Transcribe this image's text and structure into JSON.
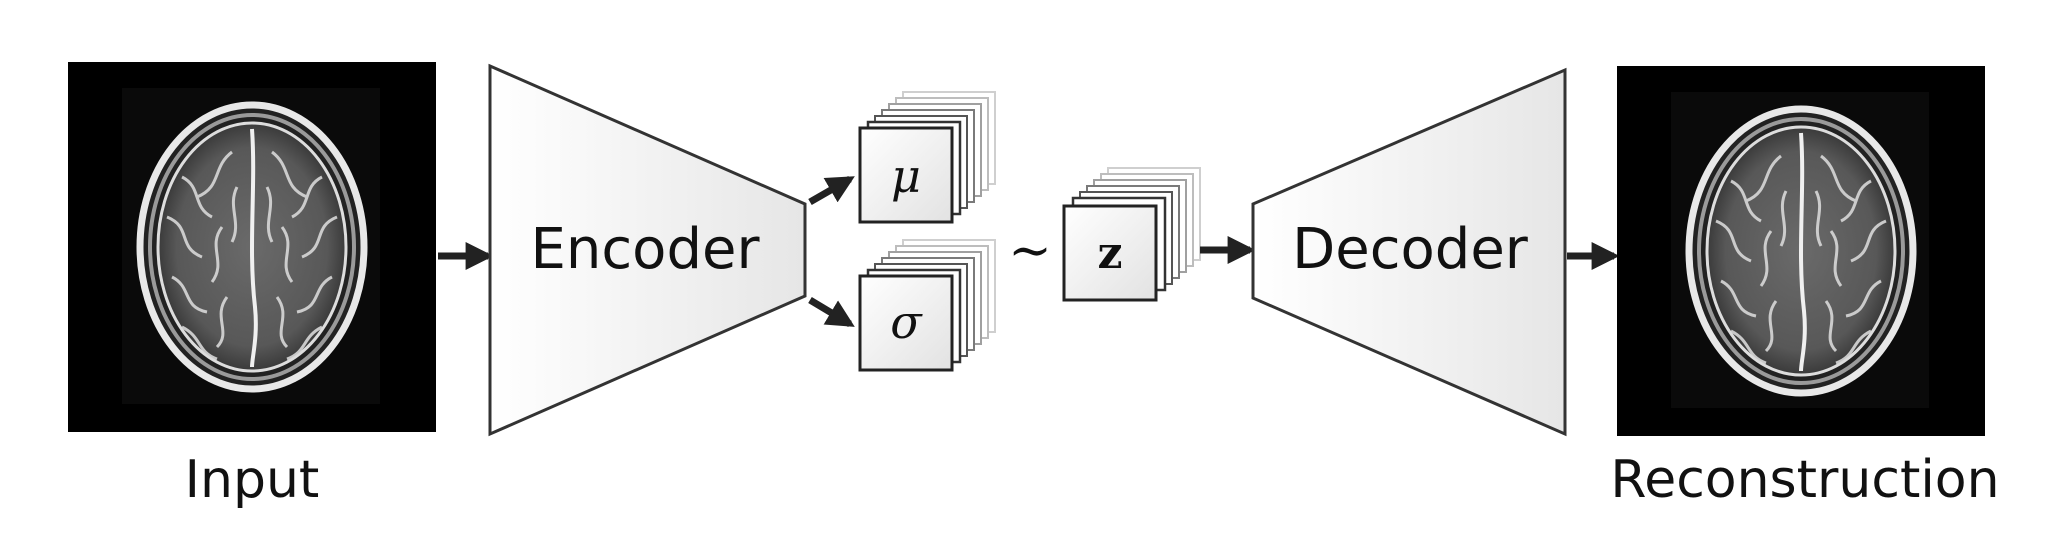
{
  "diagram": {
    "input_label": "Input",
    "output_label": "Reconstruction",
    "encoder_label": "Encoder",
    "decoder_label": "Decoder",
    "mu_symbol": "μ",
    "sigma_symbol": "σ",
    "sample_symbol": "∼",
    "latent_symbol": "z",
    "input_image_icon": "brain-mri-icon",
    "output_image_icon": "brain-mri-icon"
  }
}
